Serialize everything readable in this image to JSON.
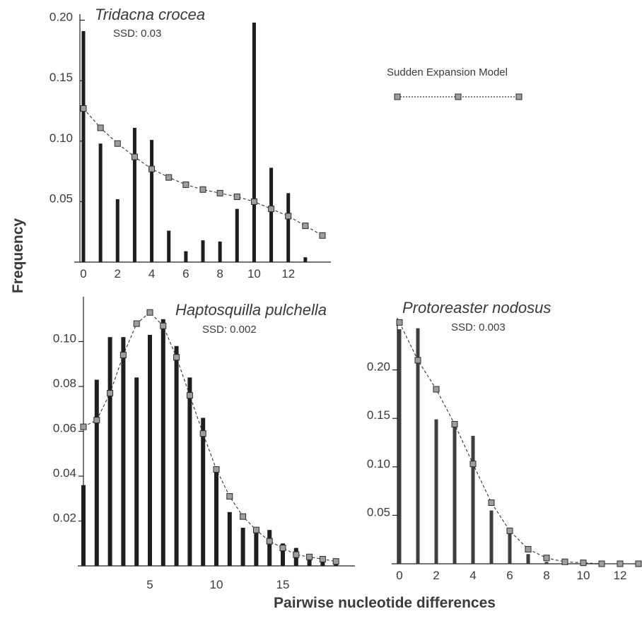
{
  "figure": {
    "ylabel": "Frequency",
    "xlabel": "Pairwise nucleotide differences",
    "legend": {
      "label": "Sudden Expansion Model"
    }
  },
  "colors": {
    "bars": "#1e1e1e",
    "bars_alt": "#3e3e3e",
    "model_line": "#333333",
    "marker_fill": "#9e9e9e",
    "marker_stroke": "#2a2a2a",
    "text": "#3a3a3a"
  },
  "chart_data": [
    {
      "type": "bar",
      "title": "Tridacna crocea",
      "ssd": "SSD:  0.03",
      "x": [
        0,
        1,
        2,
        3,
        4,
        5,
        6,
        7,
        8,
        9,
        10,
        11,
        12,
        13
      ],
      "values": [
        0.191,
        0.098,
        0.052,
        0.111,
        0.101,
        0.026,
        0.009,
        0.018,
        0.017,
        0.044,
        0.198,
        0.078,
        0.057,
        0.004
      ],
      "model": {
        "name": "Sudden Expansion Model",
        "x": [
          0,
          1,
          2,
          3,
          4,
          5,
          6,
          7,
          8,
          9,
          10,
          11,
          12,
          13,
          14
        ],
        "values": [
          0.127,
          0.111,
          0.098,
          0.087,
          0.077,
          0.07,
          0.064,
          0.06,
          0.057,
          0.054,
          0.05,
          0.044,
          0.038,
          0.03,
          0.022
        ]
      },
      "xlim": [
        0,
        14
      ],
      "ylim": [
        0,
        0.205
      ],
      "xticks": [
        "0",
        "2",
        "4",
        "6",
        "8",
        "10",
        "12"
      ],
      "yticks": [
        "0.05",
        "0.10",
        "0.15",
        "0.20"
      ]
    },
    {
      "type": "bar",
      "title": "Haptosquilla pulchella",
      "ssd": "SSD:  0.002",
      "x": [
        0,
        1,
        2,
        3,
        4,
        5,
        6,
        7,
        8,
        9,
        10,
        11,
        12,
        13,
        14,
        15,
        16,
        17,
        18,
        19
      ],
      "values": [
        0.036,
        0.083,
        0.102,
        0.102,
        0.084,
        0.103,
        0.11,
        0.098,
        0.084,
        0.066,
        0.044,
        0.024,
        0.017,
        0.017,
        0.016,
        0.01,
        0.008,
        0.005,
        0.003,
        0.002
      ],
      "model": {
        "name": "Sudden Expansion Model",
        "x": [
          0,
          1,
          2,
          3,
          4,
          5,
          6,
          7,
          8,
          9,
          10,
          11,
          12,
          13,
          14,
          15,
          16,
          17,
          18,
          19
        ],
        "values": [
          0.062,
          0.065,
          0.077,
          0.094,
          0.108,
          0.113,
          0.107,
          0.093,
          0.076,
          0.059,
          0.043,
          0.031,
          0.022,
          0.016,
          0.011,
          0.008,
          0.005,
          0.004,
          0.003,
          0.002
        ]
      },
      "xlim": [
        0,
        20
      ],
      "ylim": [
        0,
        0.12
      ],
      "xticks": [
        "5",
        "10",
        "15"
      ],
      "yticks": [
        "0.02",
        "0.04",
        "0.06",
        "0.08",
        "0.10"
      ]
    },
    {
      "type": "bar",
      "title": "Protoreaster nodosus",
      "ssd": "SSD: 0.003",
      "x": [
        0,
        1,
        2,
        3,
        4,
        5,
        6,
        7,
        8,
        9,
        10,
        11,
        12
      ],
      "values": [
        0.242,
        0.243,
        0.149,
        0.145,
        0.132,
        0.055,
        0.033,
        0.01,
        0.002,
        0.001,
        0.001,
        0.0,
        0.0
      ],
      "model": {
        "name": "Sudden Expansion Model",
        "x": [
          0,
          1,
          2,
          3,
          4,
          5,
          6,
          7,
          8,
          9,
          10,
          11,
          12,
          13
        ],
        "values": [
          0.249,
          0.21,
          0.18,
          0.144,
          0.103,
          0.063,
          0.034,
          0.015,
          0.006,
          0.002,
          0.001,
          0.0,
          0.0,
          0.0
        ]
      },
      "xlim": [
        0,
        13
      ],
      "ylim": [
        0,
        0.25
      ],
      "xticks": [
        "0",
        "2",
        "4",
        "6",
        "8",
        "10",
        "12"
      ],
      "yticks": [
        "0.05",
        "0.10",
        "0.15",
        "0.20"
      ]
    }
  ]
}
